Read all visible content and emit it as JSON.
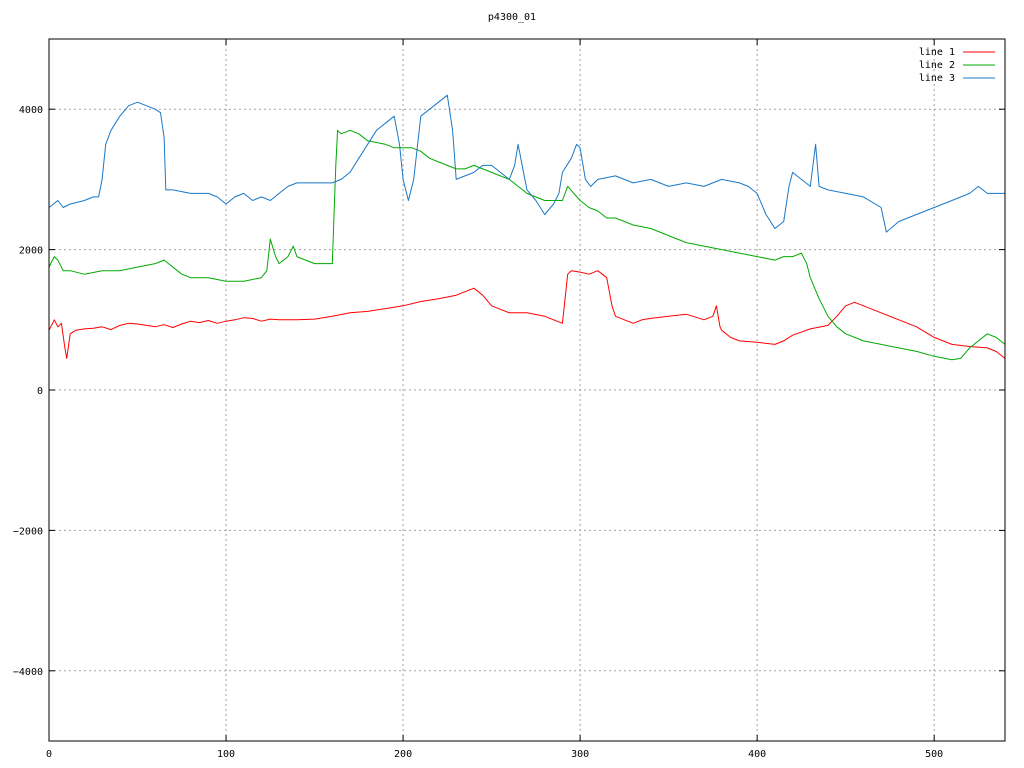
{
  "chart_data": {
    "type": "line",
    "title": "p4300_01",
    "xlim": [
      0,
      540
    ],
    "ylim": [
      -5000,
      5000
    ],
    "xticks": [
      0,
      100,
      200,
      300,
      400,
      500
    ],
    "yticks": [
      -4000,
      -2000,
      0,
      2000,
      4000
    ],
    "grid": true,
    "legend_position": "top-right",
    "series": [
      {
        "name": "line 1",
        "color": "#ff0000",
        "points": [
          [
            0,
            850
          ],
          [
            3,
            1000
          ],
          [
            5,
            900
          ],
          [
            7,
            950
          ],
          [
            9,
            600
          ],
          [
            10,
            450
          ],
          [
            12,
            800
          ],
          [
            15,
            850
          ],
          [
            20,
            870
          ],
          [
            25,
            880
          ],
          [
            30,
            900
          ],
          [
            35,
            860
          ],
          [
            40,
            920
          ],
          [
            45,
            950
          ],
          [
            50,
            940
          ],
          [
            55,
            920
          ],
          [
            60,
            900
          ],
          [
            65,
            930
          ],
          [
            70,
            890
          ],
          [
            75,
            940
          ],
          [
            80,
            980
          ],
          [
            85,
            960
          ],
          [
            90,
            990
          ],
          [
            95,
            950
          ],
          [
            100,
            980
          ],
          [
            105,
            1000
          ],
          [
            110,
            1030
          ],
          [
            115,
            1020
          ],
          [
            120,
            980
          ],
          [
            125,
            1010
          ],
          [
            130,
            1000
          ],
          [
            140,
            1000
          ],
          [
            150,
            1010
          ],
          [
            160,
            1050
          ],
          [
            170,
            1100
          ],
          [
            180,
            1120
          ],
          [
            190,
            1160
          ],
          [
            200,
            1200
          ],
          [
            210,
            1260
          ],
          [
            220,
            1300
          ],
          [
            230,
            1350
          ],
          [
            235,
            1400
          ],
          [
            240,
            1450
          ],
          [
            245,
            1350
          ],
          [
            250,
            1200
          ],
          [
            255,
            1150
          ],
          [
            260,
            1100
          ],
          [
            270,
            1100
          ],
          [
            280,
            1050
          ],
          [
            290,
            950
          ],
          [
            293,
            1650
          ],
          [
            295,
            1700
          ],
          [
            300,
            1680
          ],
          [
            305,
            1650
          ],
          [
            310,
            1700
          ],
          [
            315,
            1600
          ],
          [
            318,
            1200
          ],
          [
            320,
            1050
          ],
          [
            325,
            1000
          ],
          [
            330,
            950
          ],
          [
            335,
            1000
          ],
          [
            340,
            1020
          ],
          [
            350,
            1050
          ],
          [
            360,
            1080
          ],
          [
            370,
            1000
          ],
          [
            375,
            1050
          ],
          [
            377,
            1200
          ],
          [
            379,
            900
          ],
          [
            380,
            850
          ],
          [
            385,
            750
          ],
          [
            390,
            700
          ],
          [
            400,
            680
          ],
          [
            410,
            650
          ],
          [
            415,
            700
          ],
          [
            420,
            780
          ],
          [
            430,
            870
          ],
          [
            440,
            920
          ],
          [
            445,
            1050
          ],
          [
            450,
            1200
          ],
          [
            455,
            1250
          ],
          [
            460,
            1200
          ],
          [
            470,
            1100
          ],
          [
            480,
            1000
          ],
          [
            490,
            900
          ],
          [
            500,
            750
          ],
          [
            510,
            650
          ],
          [
            520,
            620
          ],
          [
            530,
            600
          ],
          [
            535,
            550
          ],
          [
            540,
            450
          ]
        ]
      },
      {
        "name": "line 2",
        "color": "#00aa00",
        "points": [
          [
            0,
            1750
          ],
          [
            3,
            1900
          ],
          [
            5,
            1850
          ],
          [
            8,
            1700
          ],
          [
            12,
            1700
          ],
          [
            20,
            1650
          ],
          [
            30,
            1700
          ],
          [
            40,
            1700
          ],
          [
            50,
            1750
          ],
          [
            60,
            1800
          ],
          [
            65,
            1850
          ],
          [
            70,
            1750
          ],
          [
            75,
            1650
          ],
          [
            80,
            1600
          ],
          [
            90,
            1600
          ],
          [
            100,
            1550
          ],
          [
            110,
            1550
          ],
          [
            120,
            1600
          ],
          [
            123,
            1700
          ],
          [
            125,
            2150
          ],
          [
            128,
            1900
          ],
          [
            130,
            1800
          ],
          [
            135,
            1900
          ],
          [
            138,
            2050
          ],
          [
            140,
            1900
          ],
          [
            145,
            1850
          ],
          [
            150,
            1800
          ],
          [
            155,
            1800
          ],
          [
            160,
            1800
          ],
          [
            162,
            3200
          ],
          [
            163,
            3700
          ],
          [
            165,
            3650
          ],
          [
            170,
            3700
          ],
          [
            175,
            3650
          ],
          [
            180,
            3550
          ],
          [
            190,
            3500
          ],
          [
            195,
            3450
          ],
          [
            200,
            3450
          ],
          [
            205,
            3450
          ],
          [
            210,
            3400
          ],
          [
            215,
            3300
          ],
          [
            220,
            3250
          ],
          [
            225,
            3200
          ],
          [
            230,
            3150
          ],
          [
            235,
            3150
          ],
          [
            240,
            3200
          ],
          [
            250,
            3100
          ],
          [
            260,
            3000
          ],
          [
            270,
            2800
          ],
          [
            280,
            2700
          ],
          [
            290,
            2700
          ],
          [
            293,
            2900
          ],
          [
            300,
            2700
          ],
          [
            305,
            2600
          ],
          [
            310,
            2550
          ],
          [
            315,
            2450
          ],
          [
            320,
            2450
          ],
          [
            325,
            2400
          ],
          [
            330,
            2350
          ],
          [
            340,
            2300
          ],
          [
            350,
            2200
          ],
          [
            360,
            2100
          ],
          [
            370,
            2050
          ],
          [
            380,
            2000
          ],
          [
            390,
            1950
          ],
          [
            400,
            1900
          ],
          [
            410,
            1850
          ],
          [
            415,
            1900
          ],
          [
            420,
            1900
          ],
          [
            425,
            1950
          ],
          [
            428,
            1800
          ],
          [
            430,
            1600
          ],
          [
            435,
            1300
          ],
          [
            440,
            1050
          ],
          [
            445,
            900
          ],
          [
            450,
            800
          ],
          [
            460,
            700
          ],
          [
            470,
            650
          ],
          [
            480,
            600
          ],
          [
            490,
            550
          ],
          [
            500,
            480
          ],
          [
            510,
            430
          ],
          [
            515,
            450
          ],
          [
            520,
            600
          ],
          [
            530,
            800
          ],
          [
            535,
            750
          ],
          [
            540,
            650
          ]
        ]
      },
      {
        "name": "line 3",
        "color": "#1a78c8",
        "points": [
          [
            0,
            2600
          ],
          [
            5,
            2700
          ],
          [
            8,
            2600
          ],
          [
            12,
            2650
          ],
          [
            20,
            2700
          ],
          [
            25,
            2750
          ],
          [
            28,
            2750
          ],
          [
            30,
            3000
          ],
          [
            32,
            3500
          ],
          [
            35,
            3700
          ],
          [
            40,
            3900
          ],
          [
            45,
            4050
          ],
          [
            50,
            4100
          ],
          [
            55,
            4050
          ],
          [
            60,
            4000
          ],
          [
            63,
            3950
          ],
          [
            65,
            3600
          ],
          [
            66,
            2850
          ],
          [
            70,
            2850
          ],
          [
            80,
            2800
          ],
          [
            90,
            2800
          ],
          [
            95,
            2750
          ],
          [
            100,
            2650
          ],
          [
            105,
            2750
          ],
          [
            110,
            2800
          ],
          [
            115,
            2700
          ],
          [
            120,
            2750
          ],
          [
            125,
            2700
          ],
          [
            130,
            2800
          ],
          [
            135,
            2900
          ],
          [
            140,
            2950
          ],
          [
            150,
            2950
          ],
          [
            160,
            2950
          ],
          [
            165,
            3000
          ],
          [
            170,
            3100
          ],
          [
            175,
            3300
          ],
          [
            180,
            3500
          ],
          [
            185,
            3700
          ],
          [
            190,
            3800
          ],
          [
            195,
            3900
          ],
          [
            198,
            3500
          ],
          [
            200,
            3000
          ],
          [
            203,
            2700
          ],
          [
            206,
            3000
          ],
          [
            210,
            3900
          ],
          [
            215,
            4000
          ],
          [
            220,
            4100
          ],
          [
            225,
            4200
          ],
          [
            228,
            3700
          ],
          [
            230,
            3000
          ],
          [
            235,
            3050
          ],
          [
            240,
            3100
          ],
          [
            245,
            3200
          ],
          [
            250,
            3200
          ],
          [
            255,
            3100
          ],
          [
            260,
            3000
          ],
          [
            263,
            3200
          ],
          [
            265,
            3500
          ],
          [
            268,
            3100
          ],
          [
            270,
            2850
          ],
          [
            275,
            2700
          ],
          [
            280,
            2500
          ],
          [
            285,
            2650
          ],
          [
            288,
            2800
          ],
          [
            290,
            3100
          ],
          [
            295,
            3300
          ],
          [
            298,
            3500
          ],
          [
            300,
            3450
          ],
          [
            303,
            3000
          ],
          [
            306,
            2900
          ],
          [
            310,
            3000
          ],
          [
            320,
            3050
          ],
          [
            330,
            2950
          ],
          [
            340,
            3000
          ],
          [
            350,
            2900
          ],
          [
            360,
            2950
          ],
          [
            370,
            2900
          ],
          [
            380,
            3000
          ],
          [
            390,
            2950
          ],
          [
            395,
            2900
          ],
          [
            400,
            2800
          ],
          [
            405,
            2500
          ],
          [
            410,
            2300
          ],
          [
            415,
            2400
          ],
          [
            418,
            2900
          ],
          [
            420,
            3100
          ],
          [
            425,
            3000
          ],
          [
            430,
            2900
          ],
          [
            433,
            3500
          ],
          [
            435,
            2900
          ],
          [
            440,
            2850
          ],
          [
            450,
            2800
          ],
          [
            460,
            2750
          ],
          [
            470,
            2600
          ],
          [
            473,
            2250
          ],
          [
            480,
            2400
          ],
          [
            490,
            2500
          ],
          [
            500,
            2600
          ],
          [
            510,
            2700
          ],
          [
            520,
            2800
          ],
          [
            525,
            2900
          ],
          [
            530,
            2800
          ],
          [
            540,
            2800
          ]
        ]
      }
    ]
  }
}
